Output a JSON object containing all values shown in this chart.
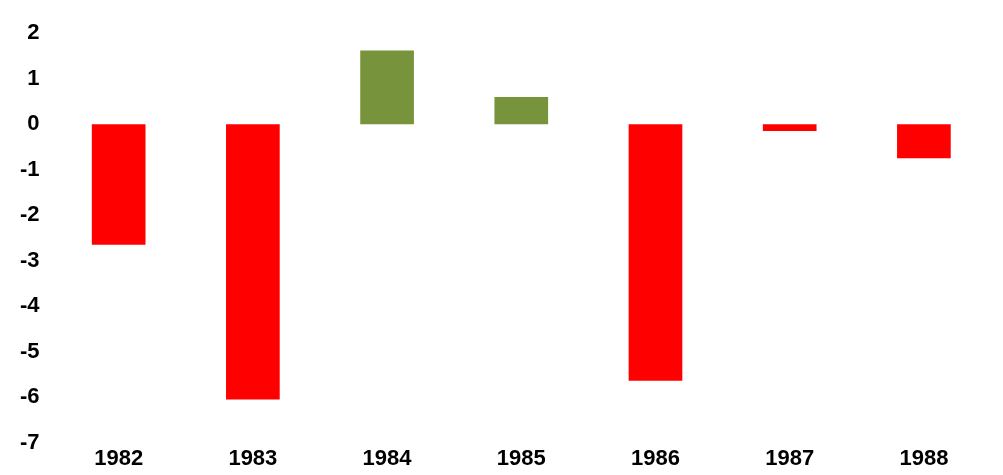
{
  "chart_data": {
    "type": "bar",
    "categories": [
      "1982",
      "1983",
      "1984",
      "1985",
      "1986",
      "1987",
      "1988"
    ],
    "values": [
      -2.65,
      -6.05,
      1.62,
      0.6,
      -5.64,
      -0.15,
      -0.75
    ],
    "colors": [
      "#ff0000",
      "#ff0000",
      "#77933c",
      "#77933c",
      "#ff0000",
      "#ff0000",
      "#ff0000"
    ],
    "ylim": [
      -7,
      2
    ],
    "yticks": [
      -7,
      -6,
      -5,
      -4,
      -3,
      -2,
      -1,
      0,
      1,
      2
    ],
    "grid": false,
    "legend": false
  }
}
